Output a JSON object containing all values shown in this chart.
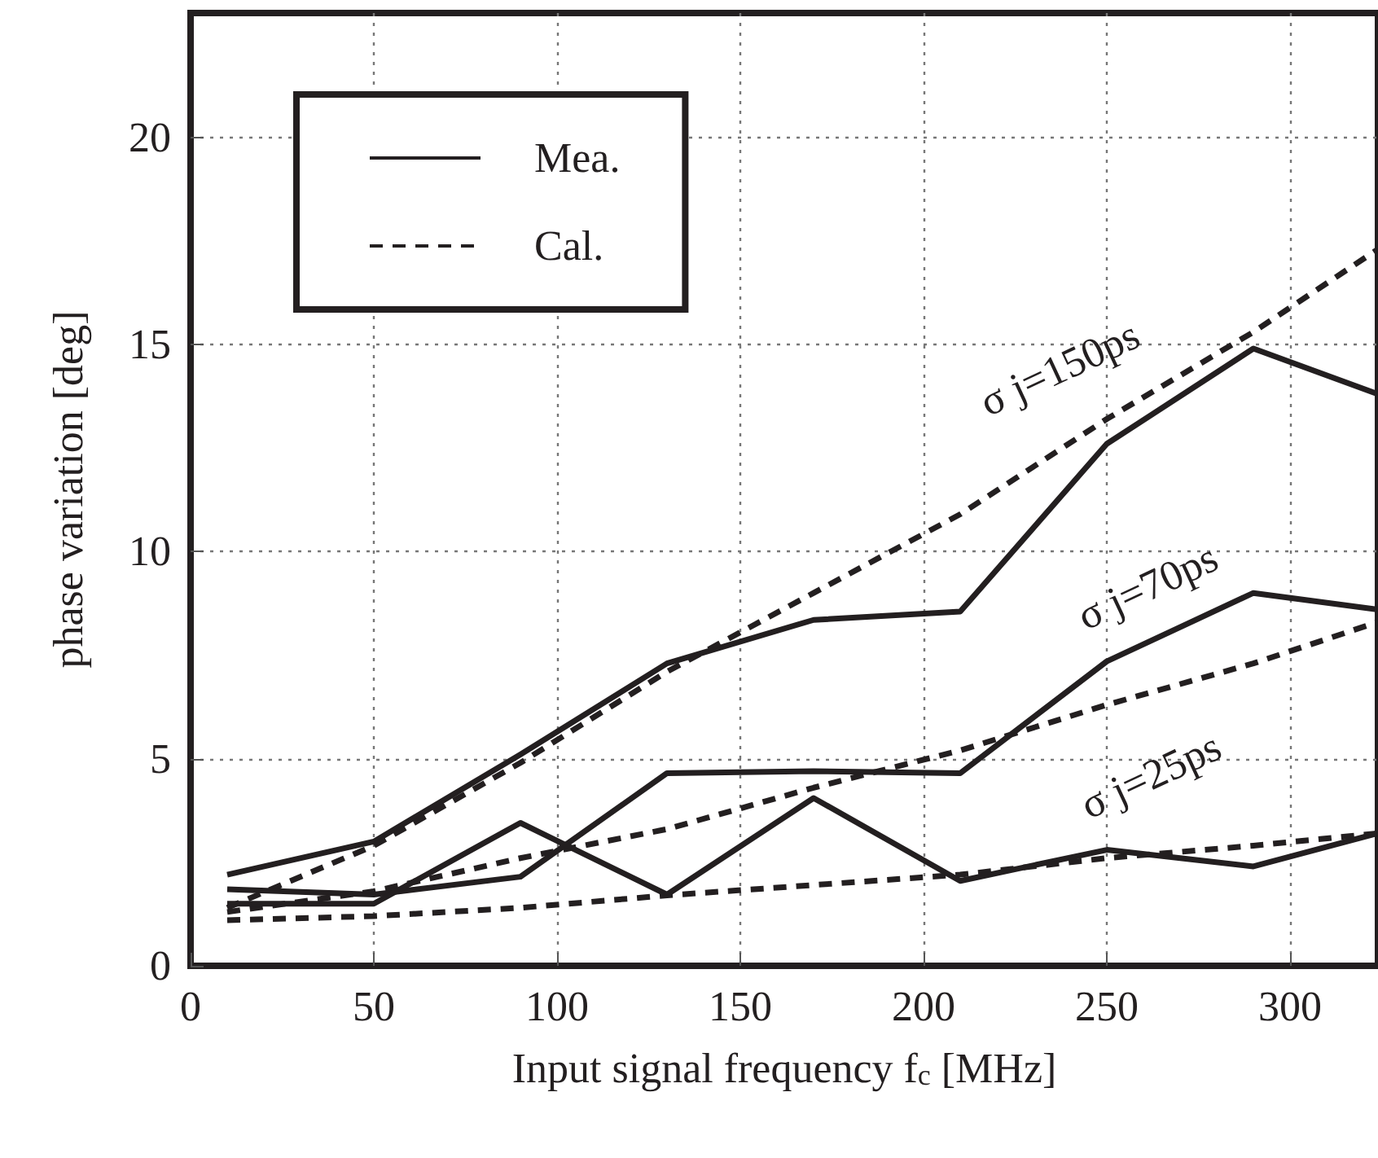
{
  "chart_data": {
    "type": "line",
    "xlabel": "Input signal frequency f$_{c}$ [MHz]",
    "ylabel": "phase variation [deg]",
    "x": [
      10,
      50,
      90,
      130,
      170,
      210,
      250,
      290,
      324
    ],
    "xlim": [
      0,
      324
    ],
    "xticks": [
      0,
      50,
      100,
      150,
      200,
      250,
      300
    ],
    "ylim": [
      0,
      23
    ],
    "yticks": [
      0,
      5,
      10,
      15,
      20
    ],
    "grid": true,
    "legend": "top left",
    "marker": "none",
    "series": [
      {
        "name": "Mea.",
        "color": "#231f20",
        "line_style": "solid",
        "values": [
          2.2,
          3.0,
          5.1,
          7.3,
          8.35,
          8.55,
          12.6,
          14.9,
          13.8
        ]
      },
      {
        "name": "Cal.",
        "color": "#231f20",
        "line_style": "dashed",
        "values": [
          1.4,
          2.9,
          4.9,
          7.1,
          9.0,
          10.9,
          13.2,
          15.3,
          17.3
        ]
      },
      {
        "color": "#231f20",
        "line_style": "solid",
        "values": [
          1.85,
          1.72,
          2.15,
          4.65,
          4.7,
          4.65,
          7.35,
          9.0,
          8.6
        ]
      },
      {
        "color": "#231f20",
        "line_style": "dashed",
        "values": [
          1.3,
          1.8,
          2.6,
          3.3,
          4.3,
          5.2,
          6.3,
          7.3,
          8.3
        ]
      },
      {
        "color": "#231f20",
        "line_style": "solid",
        "values": [
          1.5,
          1.5,
          3.45,
          1.72,
          4.05,
          2.05,
          2.8,
          2.4,
          3.2
        ]
      },
      {
        "color": "#231f20",
        "line_style": "dashed",
        "values": [
          1.1,
          1.2,
          1.4,
          1.7,
          1.95,
          2.2,
          2.6,
          2.9,
          3.2
        ]
      }
    ],
    "annotations": [
      "σ j=150ps",
      "σ j=70ps",
      "σ j=25ps"
    ]
  }
}
